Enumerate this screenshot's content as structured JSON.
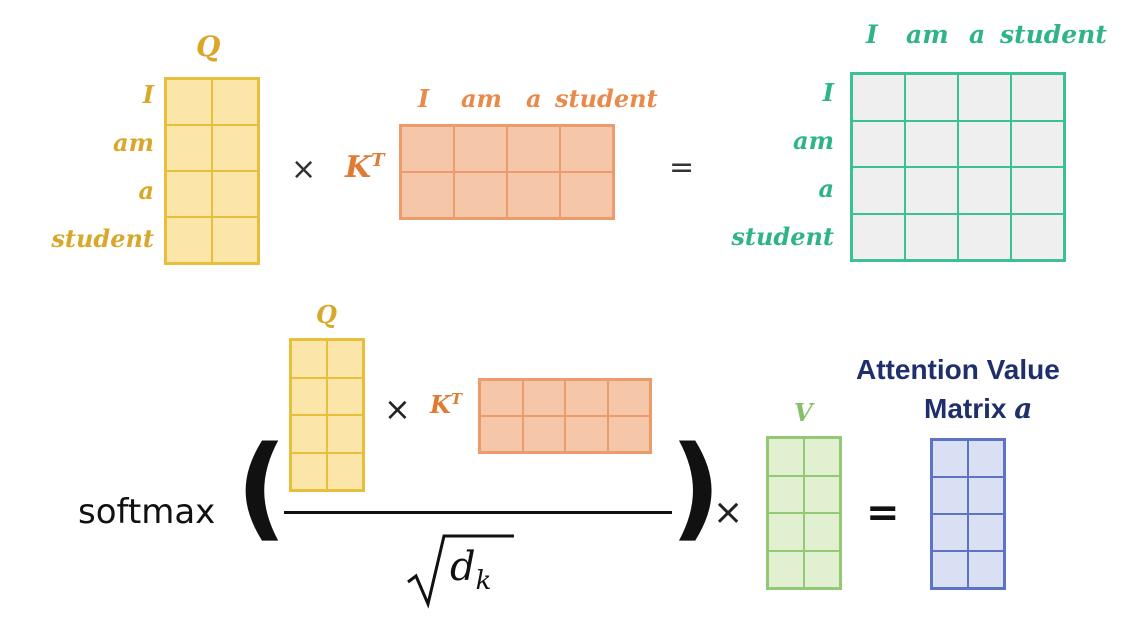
{
  "top": {
    "q_label": "Q",
    "q_rows": [
      "I",
      "am",
      "a",
      "student"
    ],
    "times": "×",
    "k_label": "K",
    "k_sup": "T",
    "k_cols": [
      "I",
      "am",
      "a",
      "student"
    ],
    "equals": "=",
    "s_cols": [
      "I",
      "am",
      "a",
      "student"
    ],
    "s_rows": [
      "I",
      "am",
      "a",
      "student"
    ]
  },
  "bottom": {
    "softmax": "softmax",
    "paren_left": "(",
    "paren_right": ")",
    "q_label": "Q",
    "times_inner": "×",
    "k_label": "K",
    "k_sup": "T",
    "sqrt": "√",
    "d": "d",
    "d_sub": "k",
    "times_outer": "×",
    "v_label": "V",
    "equals": "=",
    "attention_title_line1": "Attention Value",
    "attention_title_line2": "Matrix",
    "attention_symbol": "a"
  },
  "colors": {
    "query": "#e8bf3a",
    "key": "#ec9b6d",
    "score": "#3ec192",
    "value": "#93c874",
    "attention": "#5d74c4"
  }
}
